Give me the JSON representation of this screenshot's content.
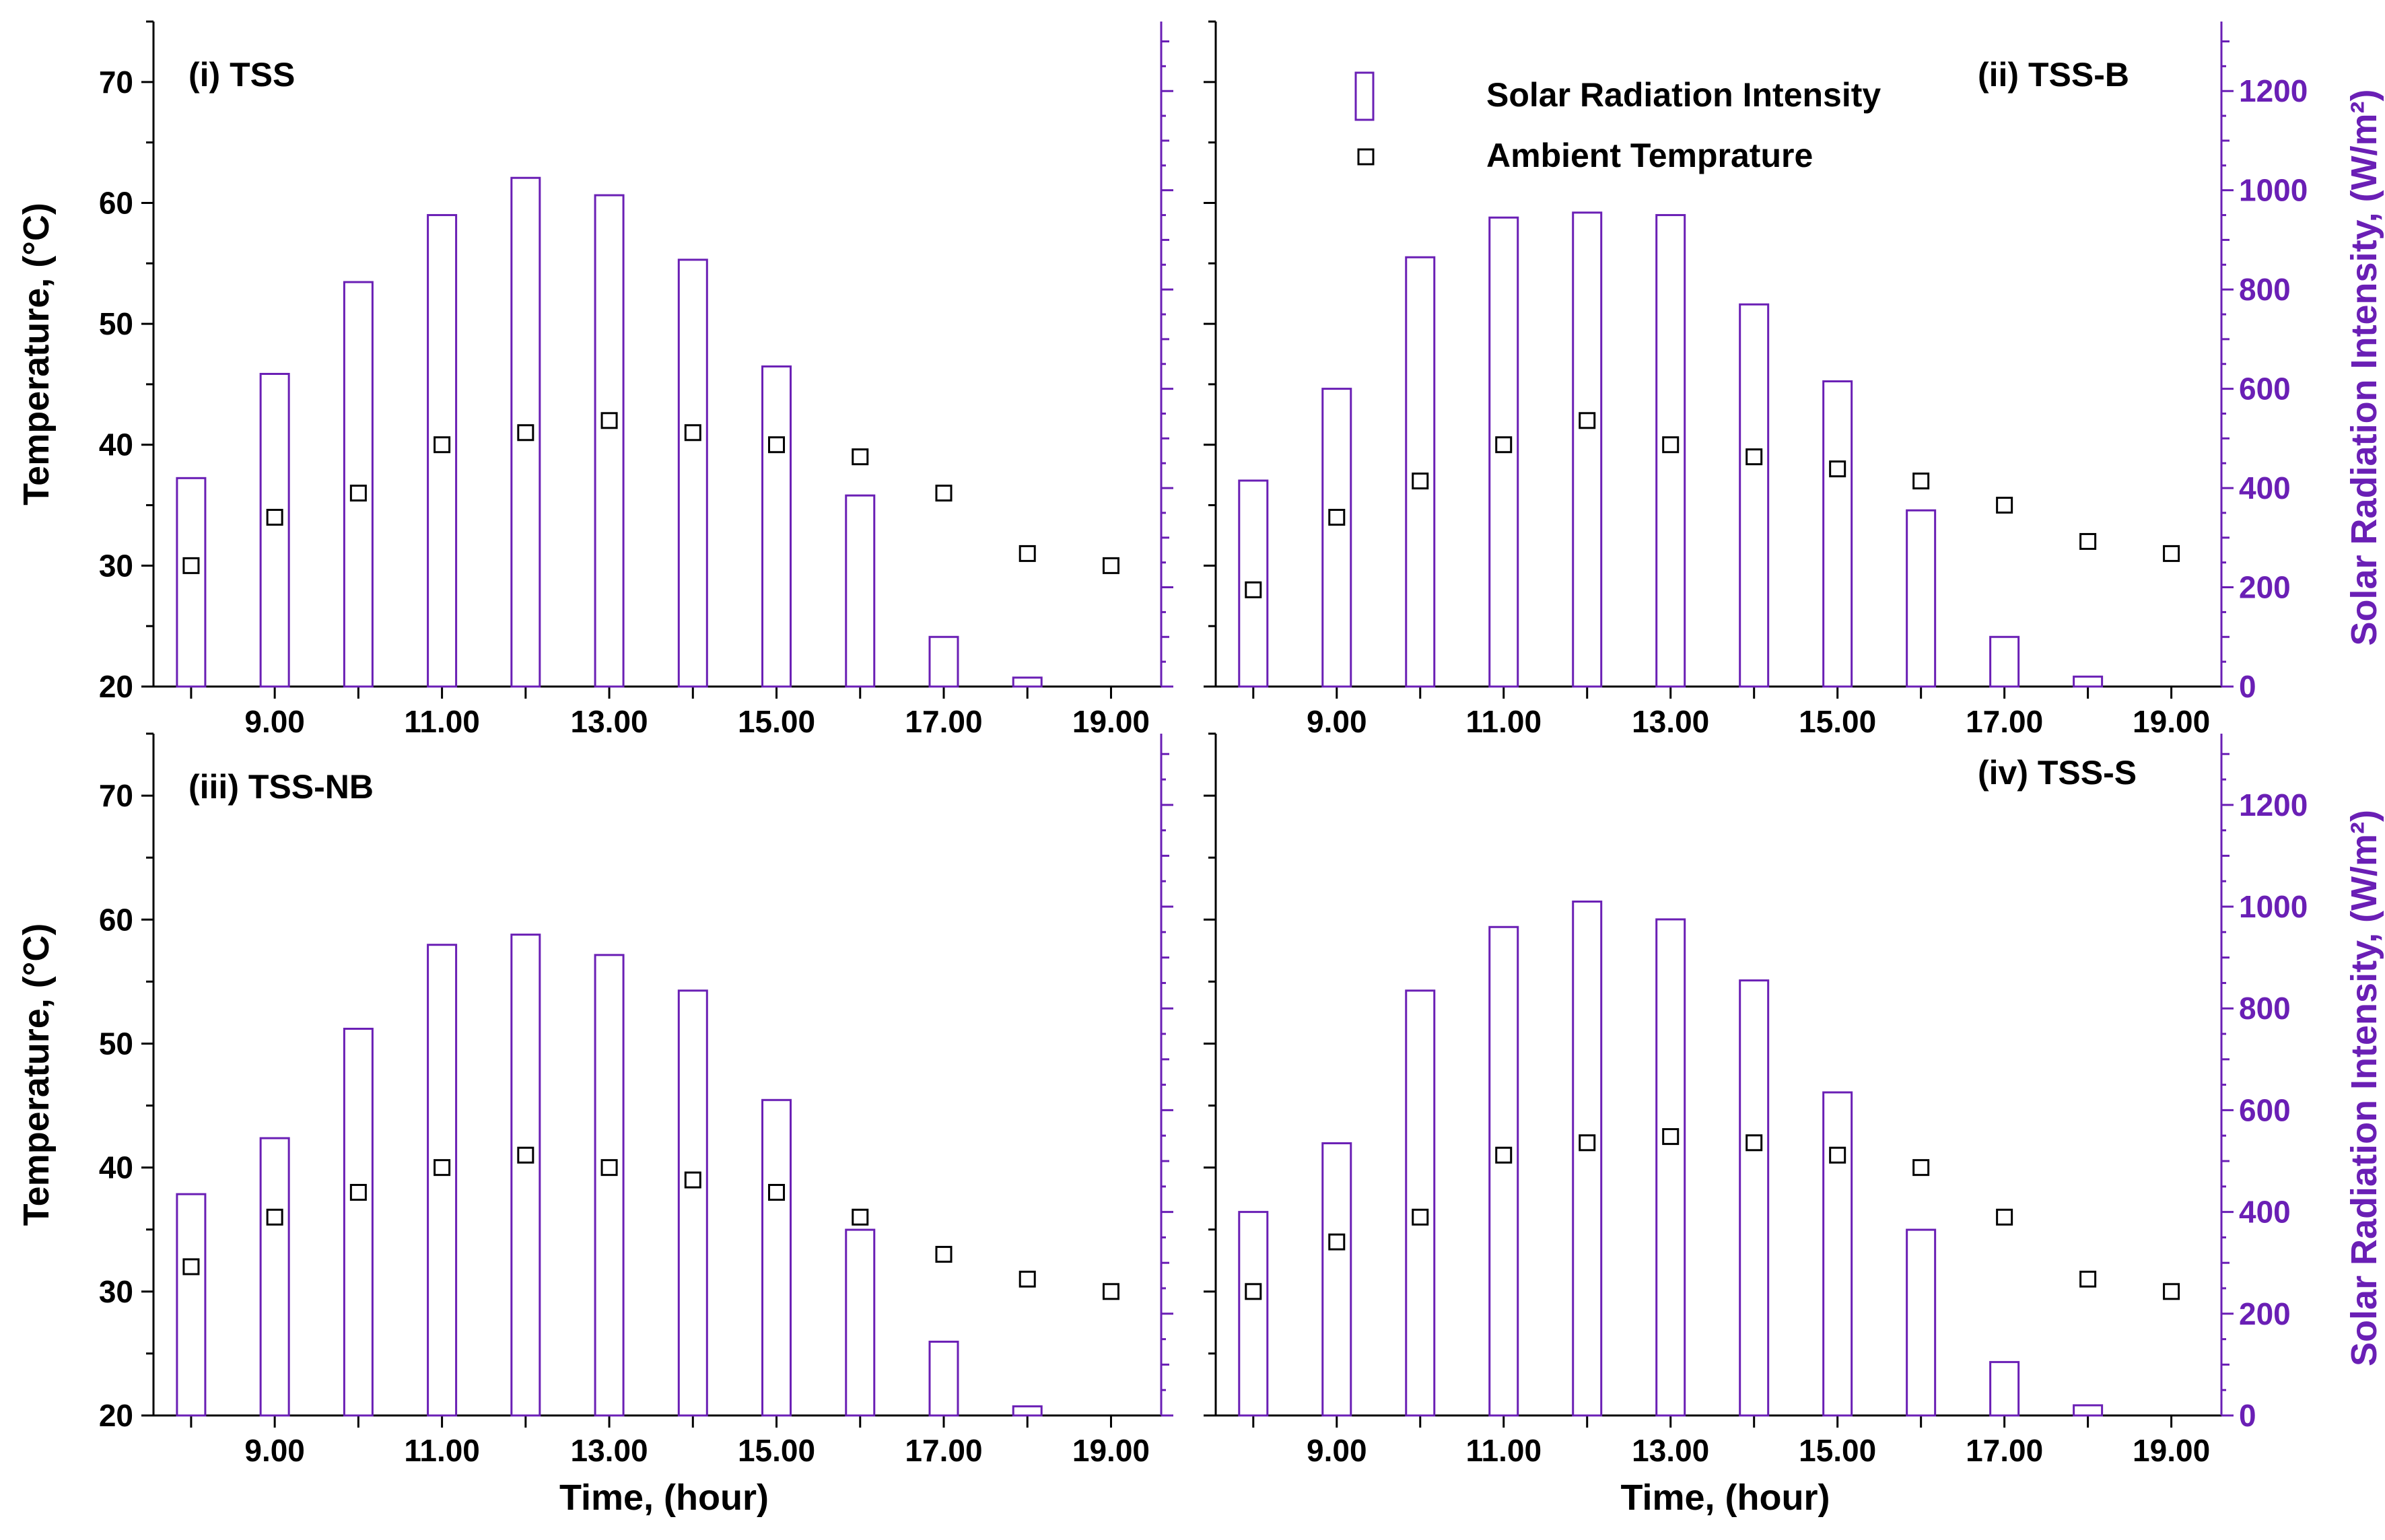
{
  "colors": {
    "bar": "#6a1fb5",
    "axis_left": "#000000",
    "axis_right": "#6a1fb5",
    "marker": "#000000"
  },
  "legend": {
    "bar_label": "Solar Radiation Intensity",
    "marker_label": "Ambient Temprature"
  },
  "chart_data": [
    {
      "type": "bar",
      "panel_label": "(i)  TSS",
      "x": [
        8,
        9,
        10,
        11,
        12,
        13,
        14,
        15,
        16,
        17,
        18,
        19
      ],
      "xlim": [
        7.55,
        19.6
      ],
      "xticks": [
        9,
        11,
        13,
        15,
        17,
        19
      ],
      "xtick_labels": [
        "9.00",
        "11.00",
        "13.00",
        "15.00",
        "17.00",
        "19.00"
      ],
      "xlabel": "",
      "ylabel": "Temperature, (°C)",
      "ylim": [
        20,
        75
      ],
      "yticks": [
        20,
        30,
        40,
        50,
        60,
        70
      ],
      "y2label": "",
      "y2lim": [
        0,
        1340
      ],
      "y2ticks": [],
      "series": [
        {
          "name": "Solar Radiation Intensity",
          "kind": "bar",
          "axis": "right",
          "values": [
            420,
            630,
            815,
            950,
            1025,
            990,
            860,
            645,
            385,
            100,
            18,
            null
          ]
        },
        {
          "name": "Ambient Temprature",
          "kind": "scatter",
          "axis": "left",
          "values": [
            30,
            34,
            36,
            40,
            41,
            42,
            41,
            40,
            39,
            36,
            31,
            30
          ]
        }
      ]
    },
    {
      "type": "bar",
      "panel_label": "(ii)  TSS-B",
      "x": [
        8,
        9,
        10,
        11,
        12,
        13,
        14,
        15,
        16,
        17,
        18,
        19
      ],
      "xlim": [
        7.55,
        19.6
      ],
      "xticks": [
        9,
        11,
        13,
        15,
        17,
        19
      ],
      "xtick_labels": [
        "9.00",
        "11.00",
        "13.00",
        "15.00",
        "17.00",
        "19.00"
      ],
      "xlabel": "",
      "ylabel": "",
      "ylim": [
        20,
        75
      ],
      "yticks": [],
      "y2label": "Solar Radiation Intensity, (W/m²)",
      "y2lim": [
        0,
        1340
      ],
      "y2ticks": [
        0,
        200,
        400,
        600,
        800,
        1000,
        1200
      ],
      "series": [
        {
          "name": "Solar Radiation Intensity",
          "kind": "bar",
          "axis": "right",
          "values": [
            415,
            600,
            865,
            945,
            955,
            950,
            770,
            615,
            355,
            100,
            20,
            null
          ]
        },
        {
          "name": "Ambient Temprature",
          "kind": "scatter",
          "axis": "left",
          "values": [
            28,
            34,
            37,
            40,
            42,
            40,
            39,
            38,
            37,
            35,
            32,
            31
          ]
        }
      ]
    },
    {
      "type": "bar",
      "panel_label": "(iii)  TSS-NB",
      "x": [
        8,
        9,
        10,
        11,
        12,
        13,
        14,
        15,
        16,
        17,
        18,
        19
      ],
      "xlim": [
        7.55,
        19.6
      ],
      "xticks": [
        9,
        11,
        13,
        15,
        17,
        19
      ],
      "xtick_labels": [
        "9.00",
        "11.00",
        "13.00",
        "15.00",
        "17.00",
        "19.00"
      ],
      "xlabel": "Time, (hour)",
      "ylabel": "Temperature, (°C)",
      "ylim": [
        20,
        75
      ],
      "yticks": [
        20,
        30,
        40,
        50,
        60,
        70
      ],
      "y2label": "",
      "y2lim": [
        0,
        1340
      ],
      "y2ticks": [],
      "series": [
        {
          "name": "Solar Radiation Intensity",
          "kind": "bar",
          "axis": "right",
          "values": [
            435,
            545,
            760,
            925,
            945,
            905,
            835,
            620,
            365,
            145,
            18,
            null
          ]
        },
        {
          "name": "Ambient Temprature",
          "kind": "scatter",
          "axis": "left",
          "values": [
            32,
            36,
            38,
            40,
            41,
            40,
            39,
            38,
            36,
            33,
            31,
            30
          ]
        }
      ]
    },
    {
      "type": "bar",
      "panel_label": "(iv)  TSS-S",
      "x": [
        8,
        9,
        10,
        11,
        12,
        13,
        14,
        15,
        16,
        17,
        18,
        19
      ],
      "xlim": [
        7.55,
        19.6
      ],
      "xticks": [
        9,
        11,
        13,
        15,
        17,
        19
      ],
      "xtick_labels": [
        "9.00",
        "11.00",
        "13.00",
        "15.00",
        "17.00",
        "19.00"
      ],
      "xlabel": "Time, (hour)",
      "ylabel": "",
      "ylim": [
        20,
        75
      ],
      "yticks": [],
      "y2label": "Solar Radiation Intensity, (W/m²)",
      "y2lim": [
        0,
        1340
      ],
      "y2ticks": [
        0,
        200,
        400,
        600,
        800,
        1000,
        1200
      ],
      "series": [
        {
          "name": "Solar Radiation Intensity",
          "kind": "bar",
          "axis": "right",
          "values": [
            400,
            535,
            835,
            960,
            1010,
            975,
            855,
            635,
            365,
            105,
            20,
            null
          ]
        },
        {
          "name": "Ambient Temprature",
          "kind": "scatter",
          "axis": "left",
          "values": [
            30,
            34,
            36,
            41,
            42,
            42.5,
            42,
            41,
            40,
            36,
            31,
            30
          ]
        }
      ]
    }
  ]
}
